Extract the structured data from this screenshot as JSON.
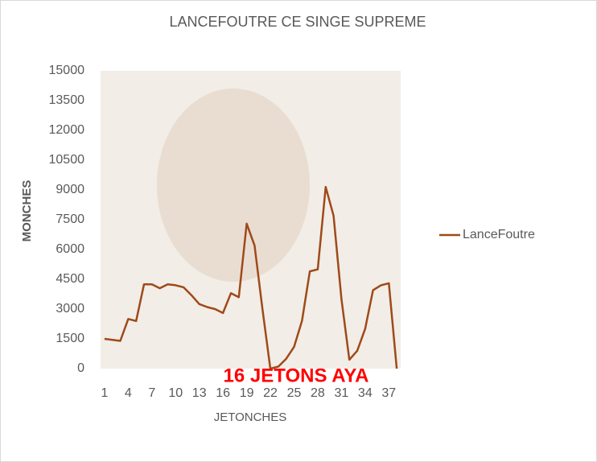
{
  "chart_data": {
    "type": "line",
    "title": "LANCEFOUTRE CE SINGE SUPREME",
    "x_label": "JETONCHES",
    "y_label": "MONCHES",
    "annotation": "16 JETONS AYA",
    "categories": [
      1,
      null,
      null,
      4,
      null,
      null,
      7,
      null,
      null,
      10,
      null,
      null,
      13,
      null,
      null,
      16,
      null,
      null,
      19,
      null,
      null,
      22,
      null,
      null,
      25,
      null,
      null,
      28,
      null,
      null,
      31,
      null,
      null,
      34,
      null,
      null,
      37,
      null
    ],
    "series": [
      {
        "name": "LanceFoutre",
        "color": "#9e4a1a",
        "values": [
          1500,
          1450,
          1400,
          2500,
          2400,
          4250,
          4250,
          4050,
          4250,
          4200,
          4100,
          3700,
          3250,
          3100,
          3000,
          2800,
          3800,
          3600,
          7300,
          6200,
          3000,
          0,
          100,
          500,
          1100,
          2400,
          4900,
          5000,
          9150,
          7700,
          3500,
          450,
          900,
          2000,
          3950,
          4200,
          4300,
          0
        ]
      }
    ],
    "ylim": [
      0,
      15000
    ],
    "yticks": [
      0,
      1500,
      3000,
      4500,
      6000,
      7500,
      9000,
      10500,
      12000,
      13500,
      15000
    ],
    "grid": false,
    "legend": "right"
  }
}
